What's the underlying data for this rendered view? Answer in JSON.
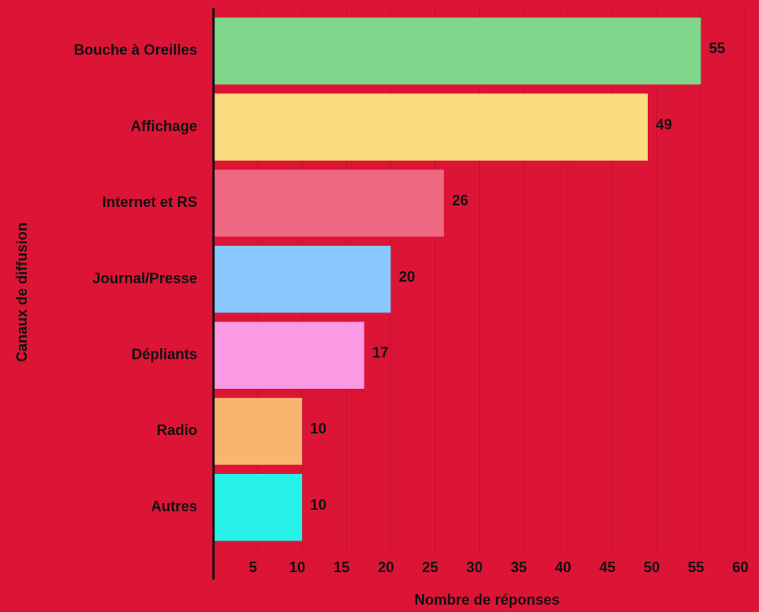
{
  "chart_data": {
    "type": "bar",
    "orientation": "horizontal",
    "categories": [
      "Bouche à Oreilles",
      "Affichage",
      "Internet et RS",
      "Journal/Presse",
      "Dépliants",
      "Radio",
      "Autres"
    ],
    "values": [
      55,
      49,
      26,
      20,
      17,
      10,
      10
    ],
    "colors": [
      "#7fd68b",
      "#fadb7e",
      "#ee6882",
      "#88c8fe",
      "#fa9ae4",
      "#f8b56e",
      "#26f2e8"
    ],
    "xlabel": "Nombre de réponses",
    "ylabel": "Canaux de diffusion",
    "xlim": [
      0,
      60
    ],
    "xticks": [
      5,
      10,
      15,
      20,
      25,
      30,
      35,
      40,
      45,
      50,
      55,
      60
    ],
    "grid": true
  }
}
